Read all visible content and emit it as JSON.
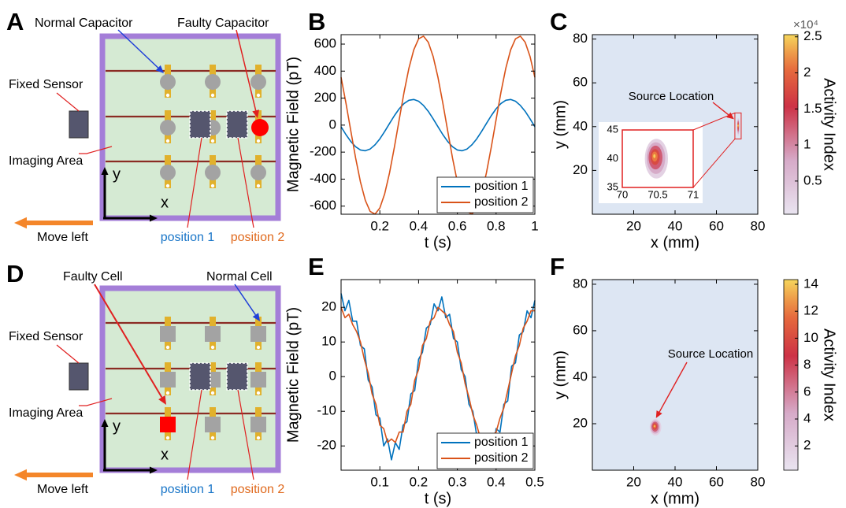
{
  "diagrams": [
    {
      "letter": "A",
      "normal_label": "Normal Capacitor",
      "faulty_label": "Faulty Capacitor",
      "fixed_sensor": "Fixed Sensor",
      "imaging_area": "Imaging Area",
      "axis_y": "y",
      "axis_x": "x",
      "move": "Move left",
      "positions": [
        "position 1",
        "position 2"
      ]
    },
    {
      "letter": "D",
      "normal_label": "Normal Cell",
      "faulty_label": "Faulty Cell",
      "fixed_sensor": "Fixed Sensor",
      "imaging_area": "Imaging Area",
      "axis_y": "y",
      "axis_x": "x",
      "move": "Move left",
      "positions": [
        "position 1",
        "position 2"
      ]
    }
  ],
  "chart_data": [
    {
      "type": "line",
      "panel": "B",
      "xlabel": "t (s)",
      "ylabel": "Magnetic Field (pT)",
      "x": [
        0,
        0.025,
        0.05,
        0.075,
        0.1,
        0.125,
        0.15,
        0.175,
        0.2,
        0.225,
        0.25,
        0.275,
        0.3,
        0.325,
        0.35,
        0.375,
        0.4,
        0.425,
        0.45,
        0.475,
        0.5,
        0.525,
        0.55,
        0.575,
        0.6,
        0.625,
        0.65,
        0.675,
        0.7,
        0.725,
        0.75,
        0.775,
        0.8,
        0.825,
        0.85,
        0.875,
        0.9,
        0.925,
        0.95,
        0.975,
        1
      ],
      "series": [
        {
          "name": "position 1",
          "color": "#0072bd",
          "values": [
            -12,
            -70,
            -121,
            -160,
            -184,
            -190,
            -177,
            -146,
            -102,
            -47,
            12,
            70,
            121,
            160,
            184,
            190,
            177,
            146,
            102,
            47,
            -12,
            -70,
            -121,
            -160,
            -184,
            -190,
            -177,
            -146,
            -102,
            -47,
            12,
            70,
            121,
            160,
            184,
            190,
            177,
            146,
            102,
            47,
            -12
          ]
        },
        {
          "name": "position 2",
          "color": "#d95319",
          "values": [
            354,
            164,
            -41,
            -243,
            -421,
            -557,
            -639,
            -659,
            -614,
            -509,
            -354,
            -164,
            41,
            243,
            421,
            557,
            639,
            659,
            614,
            509,
            354,
            164,
            -41,
            -243,
            -421,
            -557,
            -639,
            -659,
            -614,
            -509,
            -354,
            -164,
            41,
            243,
            421,
            557,
            639,
            659,
            614,
            509,
            354
          ]
        }
      ],
      "xlim": [
        0,
        1
      ],
      "ylim": [
        -660,
        670
      ],
      "xticks": [
        0.2,
        0.4,
        0.6,
        0.8,
        1
      ],
      "yticks": [
        -600,
        -400,
        -200,
        0,
        200,
        400,
        600
      ],
      "legend": "lower-right"
    },
    {
      "type": "contour",
      "panel": "C",
      "xlabel": "x (mm)",
      "ylabel": "y (mm)",
      "xlim": [
        0,
        80
      ],
      "ylim": [
        0,
        82
      ],
      "xticks": [
        20,
        40,
        60,
        80
      ],
      "yticks": [
        20,
        40,
        60,
        80
      ],
      "source": {
        "x": 70.45,
        "y": 40.5,
        "value": 25000
      },
      "annotation": "Source Location",
      "colorbar": {
        "label": "Activity Index",
        "exponent": "×10⁴",
        "lim": [
          400,
          25300
        ],
        "ticks": [
          {
            "value": 5000,
            "label": "0.5"
          },
          {
            "value": 10000,
            "label": "1"
          },
          {
            "value": 15000,
            "label": "1.5"
          },
          {
            "value": 20000,
            "label": "2"
          },
          {
            "value": 25000,
            "label": "2.5"
          }
        ]
      },
      "inset": {
        "xlim": [
          70,
          71
        ],
        "ylim": [
          35,
          45
        ],
        "xticks": [
          70,
          70.5,
          71
        ],
        "yticks": [
          35,
          40,
          45
        ]
      }
    },
    {
      "type": "line",
      "panel": "E",
      "xlabel": "t (s)",
      "ylabel": "Magnetic Field (pT)",
      "x": [
        0,
        0.01,
        0.02,
        0.03,
        0.04,
        0.05,
        0.06,
        0.07,
        0.08,
        0.09,
        0.1,
        0.11,
        0.12,
        0.13,
        0.14,
        0.15,
        0.16,
        0.17,
        0.18,
        0.19,
        0.2,
        0.21,
        0.22,
        0.23,
        0.24,
        0.25,
        0.26,
        0.27,
        0.28,
        0.29,
        0.3,
        0.31,
        0.32,
        0.33,
        0.34,
        0.35,
        0.36,
        0.37,
        0.38,
        0.39,
        0.4,
        0.41,
        0.42,
        0.43,
        0.44,
        0.45,
        0.46,
        0.47,
        0.48,
        0.49,
        0.5
      ],
      "series": [
        {
          "name": "position 1",
          "color": "#0072bd",
          "values": [
            24,
            19,
            22,
            16,
            16,
            9,
            8,
            -1,
            -3,
            -11,
            -12,
            -20,
            -18,
            -24,
            -19,
            -21,
            -14,
            -13,
            -5,
            -4,
            5,
            7,
            14,
            15,
            21,
            19,
            23,
            17,
            18,
            11,
            10,
            2,
            0,
            -8,
            -10,
            -17,
            -17,
            -22,
            -19,
            -23,
            -15,
            -16,
            -8,
            -7,
            3,
            4,
            12,
            13,
            19,
            17,
            22
          ]
        },
        {
          "name": "position 2",
          "color": "#d95319",
          "values": [
            20,
            17,
            18,
            15,
            13,
            10,
            5,
            1,
            -5,
            -8,
            -14,
            -15,
            -19,
            -18,
            -19,
            -16,
            -16,
            -10,
            -8,
            -1,
            2,
            9,
            11,
            16,
            17,
            20,
            19,
            18,
            15,
            13,
            7,
            4,
            -2,
            -6,
            -11,
            -14,
            -18,
            -18,
            -20,
            -17,
            -16,
            -12,
            -9,
            -4,
            1,
            6,
            9,
            14,
            16,
            19,
            19
          ]
        }
      ],
      "xlim": [
        0,
        0.5
      ],
      "ylim": [
        -27,
        28
      ],
      "xticks": [
        0.1,
        0.2,
        0.3,
        0.4,
        0.5
      ],
      "yticks": [
        -20,
        -10,
        0,
        10,
        20
      ],
      "legend": "lower-right"
    },
    {
      "type": "contour",
      "panel": "F",
      "xlabel": "x (mm)",
      "ylabel": "y (mm)",
      "xlim": [
        0,
        80
      ],
      "ylim": [
        0,
        82
      ],
      "xticks": [
        20,
        40,
        60,
        80
      ],
      "yticks": [
        20,
        40,
        60,
        80
      ],
      "source": {
        "x": 30,
        "y": 19,
        "value": 14
      },
      "annotation": "Source Location",
      "colorbar": {
        "label": "Activity Index",
        "lim": [
          0.2,
          14.35
        ],
        "ticks": [
          2,
          4,
          6,
          8,
          10,
          12,
          14
        ]
      }
    }
  ]
}
